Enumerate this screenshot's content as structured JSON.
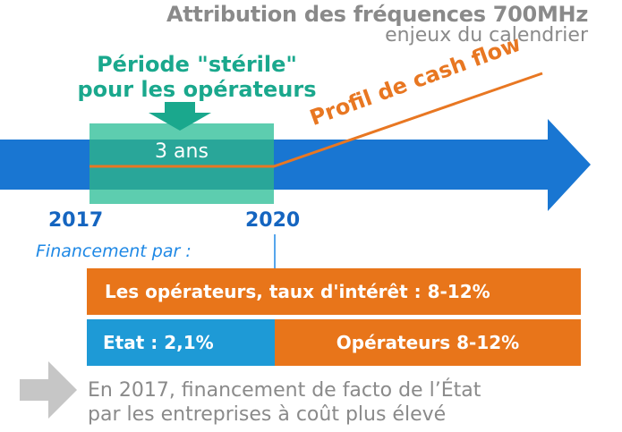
{
  "header": {
    "title": "Attribution des fréquences 700MHz",
    "subtitle": "enjeux du calendrier"
  },
  "sterile_period": {
    "line1": "Période \"stérile\"",
    "line2": "pour les opérateurs",
    "duration": "3 ans"
  },
  "timeline": {
    "start_year": "2017",
    "end_year": "2020",
    "cash_flow_label": "Profil de cash flow"
  },
  "financing": {
    "label": "Financement par :",
    "row1": "Les opérateurs, taux d'intérêt : 8-12%",
    "row2_left": "Etat :  2,1%",
    "row2_right": "Opérateurs  8-12%"
  },
  "note": {
    "line1": "En 2017, financement de facto de l’État",
    "line2": "par les entreprises à coût plus élevé"
  },
  "colors": {
    "timeline_arrow": "#1976d2",
    "sterile_box": "#4fc9a8",
    "cash_flow": "#e87722",
    "bar_orange": "#e8751a",
    "bar_blue": "#1e9ad6",
    "text_gray": "#8a8a8a"
  }
}
